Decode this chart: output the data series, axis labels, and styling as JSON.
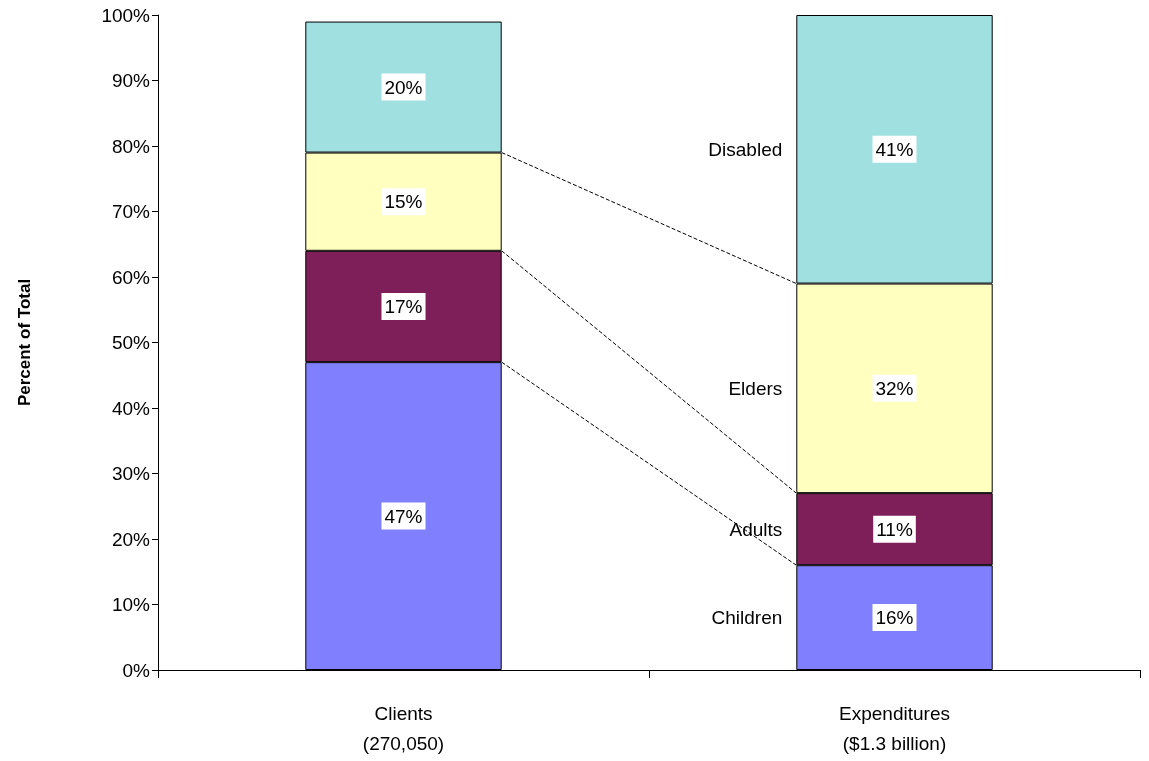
{
  "chart_data": {
    "type": "bar",
    "stacked": true,
    "ylabel": "Percent of Total",
    "categories": [
      "Clients\n(270,050)",
      "Expenditures\n($1.3 billion)"
    ],
    "series": [
      {
        "name": "Children",
        "color": "#8080ff",
        "values": [
          47,
          16
        ],
        "value_labels": [
          "47%",
          "16%"
        ]
      },
      {
        "name": "Adults",
        "color": "#7f1f5a",
        "values": [
          17,
          11
        ],
        "value_labels": [
          "17%",
          "11%"
        ]
      },
      {
        "name": "Elders",
        "color": "#ffffc0",
        "values": [
          15,
          32
        ],
        "value_labels": [
          "15%",
          "32%"
        ]
      },
      {
        "name": "Disabled",
        "color": "#a0e0e0",
        "values": [
          20,
          41
        ],
        "value_labels": [
          "20%",
          "41%"
        ]
      }
    ],
    "ylim": [
      0,
      100
    ],
    "yticks": [
      {
        "value": 0,
        "label": "0%"
      },
      {
        "value": 10,
        "label": "10%"
      },
      {
        "value": 20,
        "label": "20%"
      },
      {
        "value": 30,
        "label": "30%"
      },
      {
        "value": 40,
        "label": "40%"
      },
      {
        "value": 50,
        "label": "50%"
      },
      {
        "value": 60,
        "label": "60%"
      },
      {
        "value": 70,
        "label": "70%"
      },
      {
        "value": 80,
        "label": "80%"
      },
      {
        "value": 90,
        "label": "90%"
      },
      {
        "value": 100,
        "label": "100%"
      }
    ],
    "grid": false,
    "legend": false
  }
}
